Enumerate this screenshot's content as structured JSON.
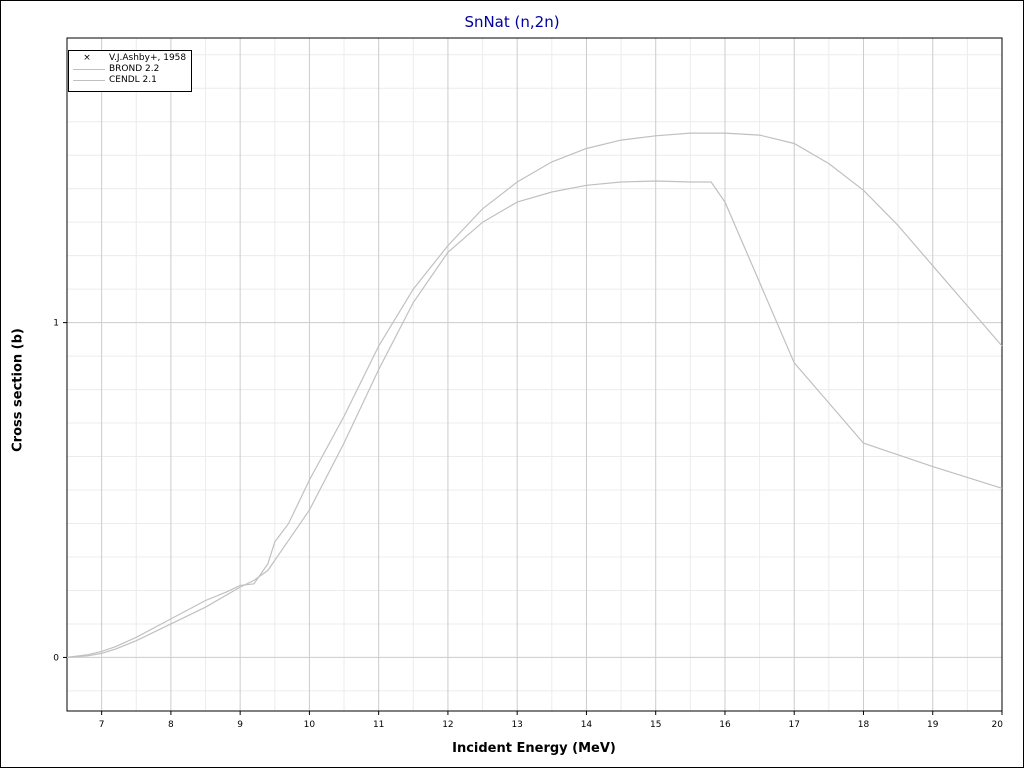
{
  "chart_data": {
    "type": "line",
    "title": "SnNat (n,2n)",
    "xlabel": "Incident Energy (MeV)",
    "ylabel": "Cross section (b)",
    "xlim": [
      6.5,
      20
    ],
    "ylim": [
      -0.16,
      1.85
    ],
    "x_ticks": [
      "7",
      "8",
      "9",
      "10",
      "11",
      "12",
      "13",
      "14",
      "15",
      "16",
      "17",
      "18",
      "19",
      "20"
    ],
    "y_ticks": [
      "0",
      "1"
    ],
    "grid": true,
    "legend_position": "top-left",
    "legend": [
      {
        "label": "V.J.Ashby+, 1958",
        "symbol": "×"
      },
      {
        "label": "BROND 2.2",
        "symbol": "line"
      },
      {
        "label": "CENDL 2.1",
        "symbol": "line"
      }
    ],
    "series": [
      {
        "name": "BROND 2.2",
        "color": "#c0c0c0",
        "x": [
          6.5,
          6.8,
          7.0,
          7.2,
          7.5,
          8.0,
          8.5,
          9.0,
          9.2,
          9.4,
          9.6,
          10.0,
          10.5,
          11.0,
          11.5,
          12.0,
          12.5,
          13.0,
          13.5,
          14.0,
          14.5,
          15.0,
          15.5,
          15.8,
          16.0,
          16.5,
          17.0,
          17.5,
          18.0,
          19.0,
          20.0
        ],
        "y": [
          0.0,
          0.005,
          0.012,
          0.025,
          0.05,
          0.1,
          0.15,
          0.21,
          0.23,
          0.26,
          0.32,
          0.44,
          0.64,
          0.86,
          1.06,
          1.21,
          1.3,
          1.36,
          1.39,
          1.41,
          1.42,
          1.423,
          1.42,
          1.42,
          1.36,
          1.12,
          0.88,
          0.76,
          0.64,
          0.57,
          0.505
        ]
      },
      {
        "name": "CENDL 2.1",
        "color": "#c0c0c0",
        "x": [
          6.5,
          6.8,
          7.0,
          7.2,
          7.5,
          8.0,
          8.5,
          8.8,
          9.0,
          9.2,
          9.4,
          9.5,
          9.7,
          10.0,
          10.5,
          11.0,
          11.5,
          12.0,
          12.5,
          13.0,
          13.5,
          14.0,
          14.5,
          15.0,
          15.5,
          16.0,
          16.5,
          17.0,
          17.5,
          18.0,
          18.5,
          19.0,
          19.5,
          20.0
        ],
        "y": [
          0.0,
          0.008,
          0.018,
          0.032,
          0.06,
          0.115,
          0.17,
          0.195,
          0.215,
          0.22,
          0.28,
          0.345,
          0.4,
          0.53,
          0.72,
          0.93,
          1.1,
          1.23,
          1.34,
          1.42,
          1.48,
          1.52,
          1.545,
          1.558,
          1.566,
          1.566,
          1.56,
          1.535,
          1.475,
          1.395,
          1.29,
          1.17,
          1.05,
          0.93
        ]
      }
    ]
  }
}
